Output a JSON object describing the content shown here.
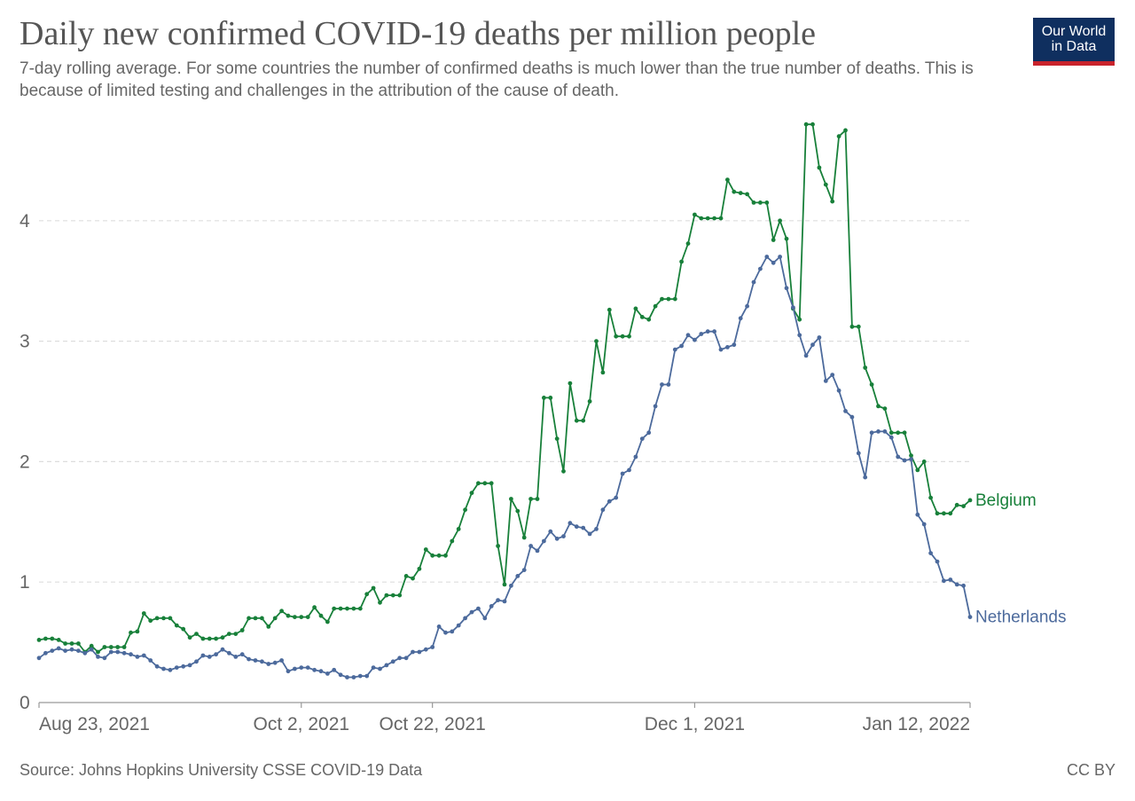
{
  "header": {
    "title": "Daily new confirmed COVID-19 deaths per million people",
    "subtitle": "7-day rolling average. For some countries the number of confirmed deaths is much lower than the true number of deaths. This is because of limited testing and challenges in the attribution of the cause of death.",
    "logo_line1": "Our World",
    "logo_line2": "in Data",
    "logo_color": "#0f2f5f",
    "logo_accent": "#c8232c"
  },
  "footer": {
    "source": "Source: Johns Hopkins University CSSE COVID-19 Data",
    "license": "CC BY"
  },
  "chart_data": {
    "type": "line",
    "x_range": [
      "2021-08-23",
      "2022-01-12"
    ],
    "ylim": [
      0,
      4.8
    ],
    "y_ticks": [
      0,
      1,
      2,
      3,
      4
    ],
    "x_ticks": [
      {
        "date": "2021-08-23",
        "label": "Aug 23, 2021"
      },
      {
        "date": "2021-10-02",
        "label": "Oct 2, 2021"
      },
      {
        "date": "2021-10-22",
        "label": "Oct 22, 2021"
      },
      {
        "date": "2021-12-01",
        "label": "Dec 1, 2021"
      },
      {
        "date": "2022-01-12",
        "label": "Jan 12, 2022"
      }
    ],
    "grid": "horizontal dashed",
    "series": [
      {
        "name": "Belgium",
        "color": "#18803a",
        "values": [
          0.52,
          0.53,
          0.53,
          0.52,
          0.49,
          0.49,
          0.49,
          0.42,
          0.47,
          0.42,
          0.46,
          0.46,
          0.46,
          0.46,
          0.58,
          0.59,
          0.74,
          0.68,
          0.7,
          0.7,
          0.7,
          0.64,
          0.61,
          0.54,
          0.57,
          0.53,
          0.53,
          0.53,
          0.54,
          0.57,
          0.57,
          0.6,
          0.7,
          0.7,
          0.7,
          0.63,
          0.7,
          0.76,
          0.72,
          0.71,
          0.71,
          0.71,
          0.79,
          0.72,
          0.67,
          0.78,
          0.78,
          0.78,
          0.78,
          0.78,
          0.9,
          0.95,
          0.83,
          0.89,
          0.89,
          0.89,
          1.05,
          1.03,
          1.11,
          1.27,
          1.22,
          1.22,
          1.22,
          1.34,
          1.44,
          1.6,
          1.74,
          1.82,
          1.82,
          1.82,
          1.3,
          0.98,
          1.69,
          1.59,
          1.37,
          1.69,
          1.69,
          2.53,
          2.53,
          2.19,
          1.92,
          2.65,
          2.34,
          2.34,
          2.5,
          3.0,
          2.74,
          3.26,
          3.04,
          3.04,
          3.04,
          3.27,
          3.2,
          3.18,
          3.29,
          3.35,
          3.35,
          3.35,
          3.66,
          3.81,
          4.05,
          4.02,
          4.02,
          4.02,
          4.02,
          4.34,
          4.24,
          4.23,
          4.22,
          4.15,
          4.15,
          4.15,
          3.84,
          4.0,
          3.85,
          3.27,
          3.18,
          4.8,
          4.8,
          4.44,
          4.3,
          4.16,
          4.7,
          4.75,
          3.12,
          3.12,
          2.78,
          2.64,
          2.46,
          2.44,
          2.24,
          2.24,
          2.24,
          2.05,
          1.93,
          2.0,
          1.7,
          1.57,
          1.57,
          1.57,
          1.64,
          1.63,
          1.68
        ]
      },
      {
        "name": "Netherlands",
        "color": "#4c6a9c",
        "values": [
          0.37,
          0.41,
          0.43,
          0.45,
          0.43,
          0.44,
          0.43,
          0.41,
          0.44,
          0.38,
          0.37,
          0.42,
          0.42,
          0.41,
          0.4,
          0.38,
          0.39,
          0.35,
          0.3,
          0.28,
          0.27,
          0.29,
          0.3,
          0.31,
          0.34,
          0.39,
          0.38,
          0.4,
          0.44,
          0.41,
          0.38,
          0.4,
          0.36,
          0.35,
          0.34,
          0.32,
          0.33,
          0.35,
          0.26,
          0.28,
          0.29,
          0.29,
          0.27,
          0.26,
          0.24,
          0.27,
          0.23,
          0.21,
          0.21,
          0.22,
          0.22,
          0.29,
          0.28,
          0.31,
          0.34,
          0.37,
          0.37,
          0.42,
          0.42,
          0.44,
          0.46,
          0.63,
          0.58,
          0.59,
          0.64,
          0.7,
          0.75,
          0.78,
          0.7,
          0.8,
          0.85,
          0.84,
          0.97,
          1.05,
          1.1,
          1.3,
          1.26,
          1.34,
          1.42,
          1.36,
          1.38,
          1.49,
          1.46,
          1.45,
          1.4,
          1.44,
          1.6,
          1.67,
          1.7,
          1.9,
          1.93,
          2.04,
          2.19,
          2.24,
          2.46,
          2.64,
          2.64,
          2.93,
          2.96,
          3.05,
          3.01,
          3.06,
          3.08,
          3.08,
          2.93,
          2.95,
          2.97,
          3.19,
          3.29,
          3.49,
          3.6,
          3.7,
          3.65,
          3.7,
          3.44,
          3.28,
          3.05,
          2.88,
          2.97,
          3.03,
          2.67,
          2.72,
          2.59,
          2.42,
          2.37,
          2.07,
          1.87,
          2.24,
          2.25,
          2.25,
          2.2,
          2.04,
          2.01,
          2.02,
          1.56,
          1.48,
          1.24,
          1.17,
          1.01,
          1.02,
          0.98,
          0.97,
          0.71
        ]
      }
    ]
  }
}
